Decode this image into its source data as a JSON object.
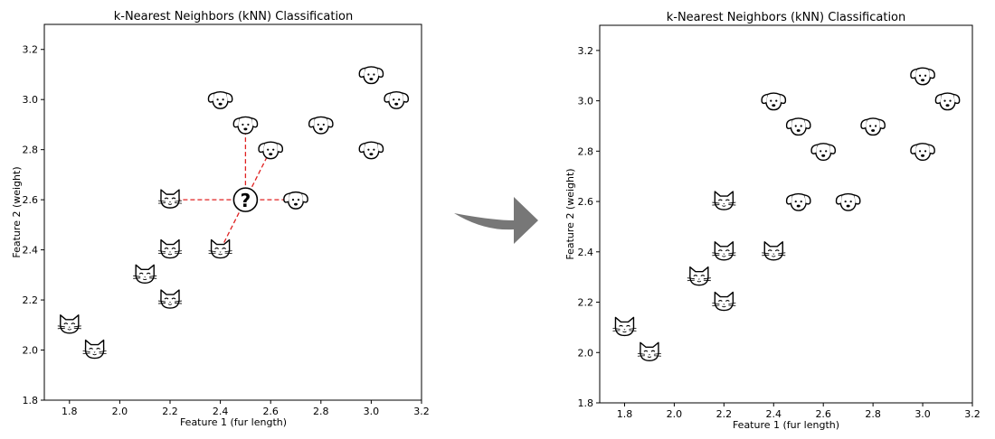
{
  "chart_data": [
    {
      "type": "scatter",
      "title": "k-Nearest Neighbors (kNN) Classification",
      "xlabel": "Feature 1 (fur length)",
      "ylabel": "Feature 2 (weight)",
      "xlim": [
        1.7,
        3.2
      ],
      "ylim": [
        1.8,
        3.3
      ],
      "xticks": [
        "1.8",
        "2.0",
        "2.2",
        "2.4",
        "2.6",
        "2.8",
        "3.0",
        "3.2"
      ],
      "yticks": [
        "1.8",
        "2.0",
        "2.2",
        "2.4",
        "2.6",
        "2.8",
        "3.0",
        "3.2"
      ],
      "grid": false,
      "series": [
        {
          "name": "cat",
          "icon": "cat-icon",
          "x": [
            1.8,
            1.9,
            2.1,
            2.2,
            2.2,
            2.2,
            2.4
          ],
          "y": [
            2.1,
            2.0,
            2.3,
            2.4,
            2.2,
            2.6,
            2.4
          ]
        },
        {
          "name": "dog",
          "icon": "dog-icon",
          "x": [
            2.4,
            2.5,
            2.6,
            2.8,
            3.0,
            3.1,
            3.0,
            2.7
          ],
          "y": [
            3.0,
            2.9,
            2.8,
            2.9,
            3.1,
            3.0,
            2.8,
            2.6
          ]
        }
      ],
      "query_point": {
        "label": "?",
        "x": 2.5,
        "y": 2.6
      },
      "neighbors": [
        {
          "x": 2.5,
          "y": 2.9
        },
        {
          "x": 2.6,
          "y": 2.8
        },
        {
          "x": 2.2,
          "y": 2.6
        },
        {
          "x": 2.7,
          "y": 2.6
        },
        {
          "x": 2.4,
          "y": 2.4
        }
      ],
      "neighbor_line_color": "#e02020"
    },
    {
      "type": "scatter",
      "title": "k-Nearest Neighbors (kNN) Classification",
      "xlabel": "Feature 1 (fur length)",
      "ylabel": "Feature 2 (weight)",
      "xlim": [
        1.7,
        3.2
      ],
      "ylim": [
        1.8,
        3.3
      ],
      "xticks": [
        "1.8",
        "2.0",
        "2.2",
        "2.4",
        "2.6",
        "2.8",
        "3.0",
        "3.2"
      ],
      "yticks": [
        "1.8",
        "2.0",
        "2.2",
        "2.4",
        "2.6",
        "2.8",
        "3.0",
        "3.2"
      ],
      "grid": false,
      "series": [
        {
          "name": "cat",
          "icon": "cat-icon",
          "x": [
            1.8,
            1.9,
            2.1,
            2.2,
            2.2,
            2.2,
            2.4
          ],
          "y": [
            2.1,
            2.0,
            2.3,
            2.4,
            2.2,
            2.6,
            2.4
          ]
        },
        {
          "name": "dog",
          "icon": "dog-icon",
          "x": [
            2.4,
            2.5,
            2.6,
            2.8,
            3.0,
            3.1,
            3.0,
            2.5,
            2.7
          ],
          "y": [
            3.0,
            2.9,
            2.8,
            2.9,
            3.1,
            3.0,
            2.8,
            2.6,
            2.6
          ]
        }
      ]
    }
  ],
  "arrow": {
    "icon": "curved-arrow-icon",
    "color": "#777777"
  }
}
